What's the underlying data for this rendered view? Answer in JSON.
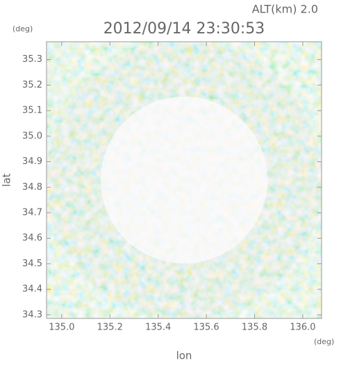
{
  "chart_data": {
    "type": "radar-field",
    "title": "2012/09/14 23:30:53",
    "annotation": "ALT(km) 2.0",
    "x_label": "lon",
    "y_label": "lat",
    "x_unit": "(deg)",
    "y_unit": "(deg)",
    "xlim": [
      134.937,
      136.078
    ],
    "ylim": [
      34.286,
      35.37
    ],
    "xticks": [
      {
        "value": 135,
        "label": "135.0"
      },
      135.2,
      135.4,
      135.6,
      135.8,
      {
        "value": 136,
        "label": "136.0"
      }
    ],
    "yticks": [
      34.3,
      34.4,
      34.5,
      34.6,
      34.7,
      34.8,
      34.9,
      {
        "value": 35,
        "label": "35.0"
      },
      35.1,
      35.2,
      35.3
    ]
  }
}
